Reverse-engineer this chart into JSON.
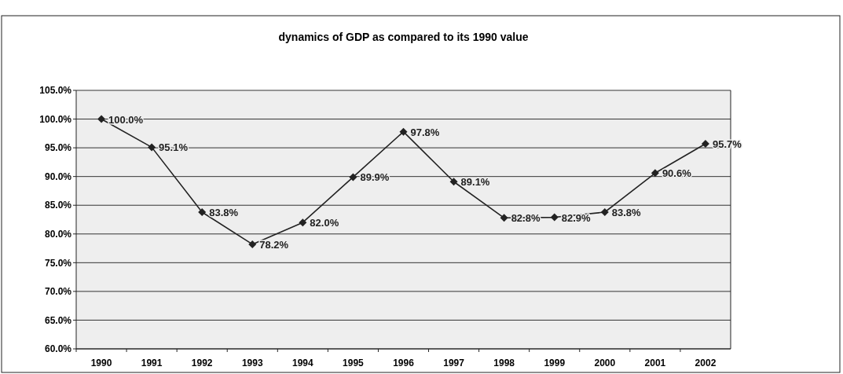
{
  "chart_data": {
    "type": "line",
    "title": "dynamics of GDP as compared to its 1990 value",
    "categories": [
      "1990",
      "1991",
      "1992",
      "1993",
      "1994",
      "1995",
      "1996",
      "1997",
      "1998",
      "1999",
      "2000",
      "2001",
      "2002"
    ],
    "series": [
      {
        "color": "#222222",
        "values": [
          100.0,
          95.1,
          83.8,
          78.2,
          82.0,
          89.9,
          97.8,
          89.1,
          82.8,
          82.9,
          83.8,
          90.6,
          95.7
        ],
        "value_labels": [
          "100.0%",
          "95.1%",
          "83.8%",
          "78.2%",
          "82.0%",
          "89.9%",
          "97.8%",
          "89.1%",
          "82.8%",
          "82.9%",
          "83.8%",
          "90.6%",
          "95.7%"
        ]
      }
    ],
    "ylim": [
      60,
      105
    ],
    "yticks": [
      {
        "value": 60,
        "label": "60.0%"
      },
      {
        "value": 65,
        "label": "65.0%"
      },
      {
        "value": 70,
        "label": "70.0%"
      },
      {
        "value": 75,
        "label": "75.0%"
      },
      {
        "value": 80,
        "label": "80.0%"
      },
      {
        "value": 85,
        "label": "85.0%"
      },
      {
        "value": 90,
        "label": "90.0%"
      },
      {
        "value": 95,
        "label": "95.0%"
      },
      {
        "value": 100,
        "label": "100.0%"
      },
      {
        "value": 105,
        "label": "105.0%"
      }
    ],
    "grid": "y",
    "marker": "diamond",
    "line_style": "solid"
  }
}
